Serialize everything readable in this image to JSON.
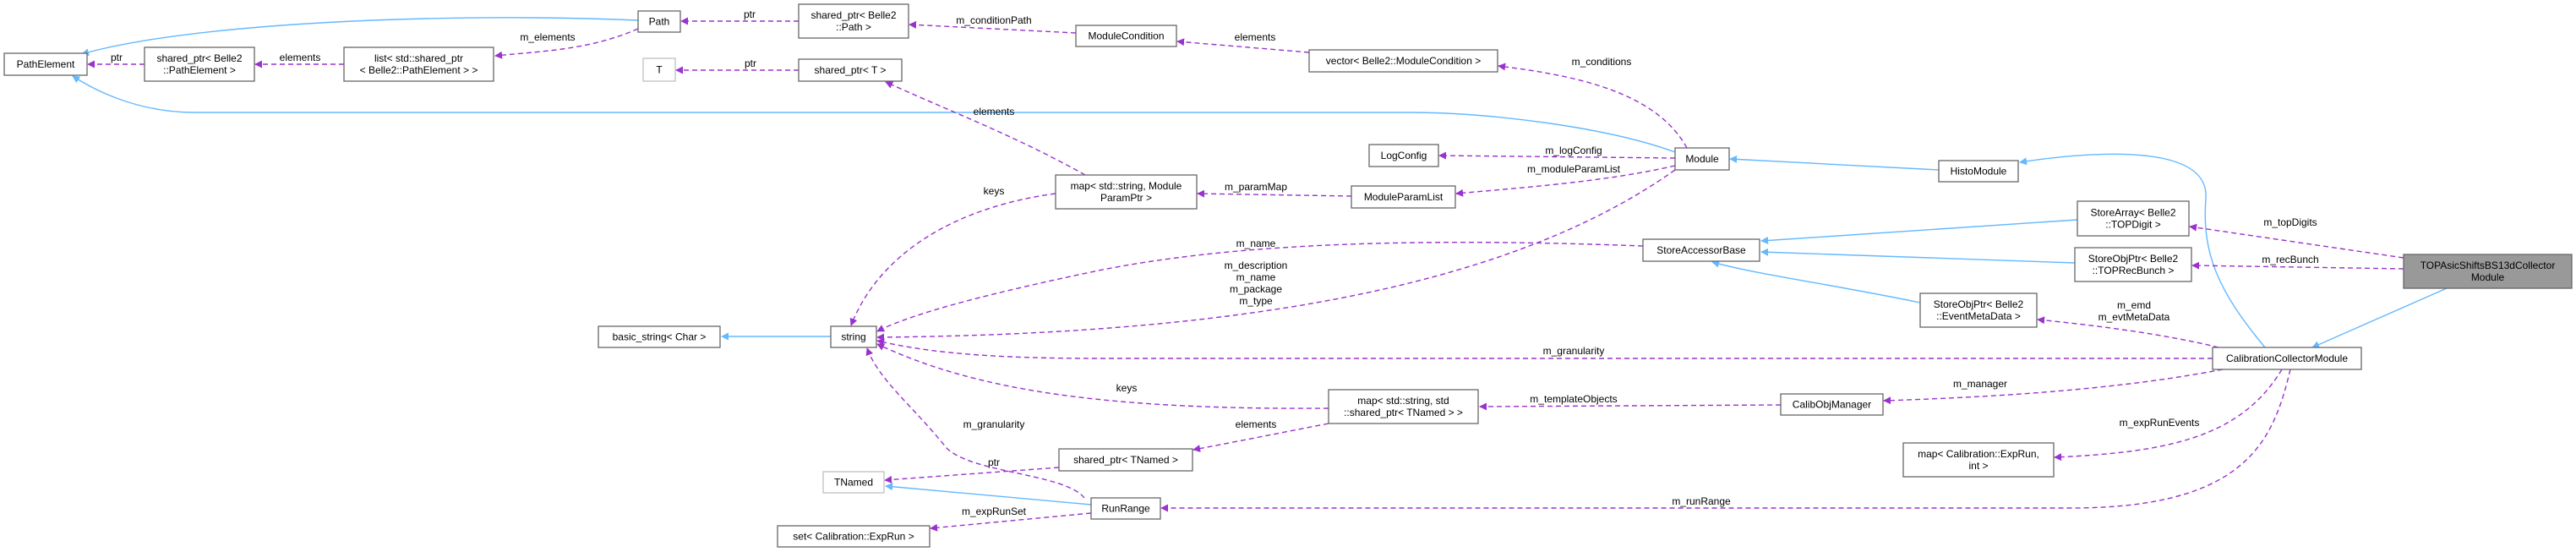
{
  "diagram": {
    "colors": {
      "inheritance": "#63b8ff",
      "usage": "#9a32cd",
      "focus_fill": "#999999"
    },
    "nodes": [
      {
        "id": "PathElement",
        "lines": [
          "PathElement"
        ]
      },
      {
        "id": "SP_PathElement",
        "lines": [
          "shared_ptr< Belle2",
          "::PathElement >"
        ]
      },
      {
        "id": "List_SP_PathElement",
        "lines": [
          "list< std::shared_ptr",
          "< Belle2::PathElement > >"
        ]
      },
      {
        "id": "Path",
        "lines": [
          "Path"
        ]
      },
      {
        "id": "T",
        "lines": [
          "T"
        ],
        "external": true
      },
      {
        "id": "SP_Path",
        "lines": [
          "shared_ptr< Belle2",
          "::Path >"
        ]
      },
      {
        "id": "SP_T",
        "lines": [
          "shared_ptr< T >"
        ]
      },
      {
        "id": "ModuleCondition",
        "lines": [
          "ModuleCondition"
        ]
      },
      {
        "id": "Vector_ModuleCondition",
        "lines": [
          "vector< Belle2::ModuleCondition >"
        ]
      },
      {
        "id": "LogConfig",
        "lines": [
          "LogConfig"
        ]
      },
      {
        "id": "Map_ModuleParamPtr",
        "lines": [
          "map< std::string, Module",
          "ParamPtr >"
        ]
      },
      {
        "id": "ModuleParamList",
        "lines": [
          "ModuleParamList"
        ]
      },
      {
        "id": "Module",
        "lines": [
          "Module"
        ]
      },
      {
        "id": "HistoModule",
        "lines": [
          "HistoModule"
        ]
      },
      {
        "id": "StoreAccessorBase",
        "lines": [
          "StoreAccessorBase"
        ]
      },
      {
        "id": "StoreArray_TOPDigit",
        "lines": [
          "StoreArray< Belle2",
          "::TOPDigit >"
        ]
      },
      {
        "id": "StoreObjPtr_TOPRecBunch",
        "lines": [
          "StoreObjPtr< Belle2",
          "::TOPRecBunch >"
        ]
      },
      {
        "id": "TOPAsic",
        "lines": [
          "TOPAsicShiftsBS13dCollector",
          "Module"
        ],
        "focus": true
      },
      {
        "id": "StoreObjPtr_EventMetaData",
        "lines": [
          "StoreObjPtr< Belle2",
          "::EventMetaData >"
        ]
      },
      {
        "id": "CalibrationCollectorModule",
        "lines": [
          "CalibrationCollectorModule"
        ]
      },
      {
        "id": "BasicString",
        "lines": [
          "basic_string< Char >"
        ]
      },
      {
        "id": "String",
        "lines": [
          "string"
        ]
      },
      {
        "id": "Map_TNamed",
        "lines": [
          "map< std::string, std",
          "::shared_ptr< TNamed > >"
        ]
      },
      {
        "id": "CalibObjManager",
        "lines": [
          "CalibObjManager"
        ]
      },
      {
        "id": "SP_TNamed",
        "lines": [
          "shared_ptr< TNamed >"
        ]
      },
      {
        "id": "TNamed",
        "lines": [
          "TNamed"
        ],
        "external": true
      },
      {
        "id": "RunRange",
        "lines": [
          "RunRange"
        ]
      },
      {
        "id": "Set_ExpRun",
        "lines": [
          "set< Calibration::ExpRun >"
        ]
      },
      {
        "id": "Map_ExpRun_int",
        "lines": [
          "map< Calibration::ExpRun,",
          "int >"
        ]
      }
    ],
    "edges": [
      {
        "from": "Path",
        "to": "PathElement",
        "kind": "inherit",
        "label": []
      },
      {
        "from": "Module",
        "to": "PathElement",
        "kind": "inherit",
        "label": []
      },
      {
        "from": "HistoModule",
        "to": "Module",
        "kind": "inherit",
        "label": []
      },
      {
        "from": "CalibrationCollectorModule",
        "to": "HistoModule",
        "kind": "inherit",
        "label": []
      },
      {
        "from": "TOPAsic",
        "to": "CalibrationCollectorModule",
        "kind": "inherit",
        "label": []
      },
      {
        "from": "StoreArray_TOPDigit",
        "to": "StoreAccessorBase",
        "kind": "inherit",
        "label": []
      },
      {
        "from": "StoreObjPtr_TOPRecBunch",
        "to": "StoreAccessorBase",
        "kind": "inherit",
        "label": []
      },
      {
        "from": "StoreObjPtr_EventMetaData",
        "to": "StoreAccessorBase",
        "kind": "inherit",
        "label": []
      },
      {
        "from": "String",
        "to": "BasicString",
        "kind": "inherit",
        "label": []
      },
      {
        "from": "RunRange",
        "to": "TNamed",
        "kind": "inherit",
        "label": []
      },
      {
        "from": "SP_PathElement",
        "to": "PathElement",
        "kind": "use",
        "label": [
          "ptr"
        ]
      },
      {
        "from": "List_SP_PathElement",
        "to": "SP_PathElement",
        "kind": "use",
        "label": [
          "elements"
        ]
      },
      {
        "from": "Path",
        "to": "List_SP_PathElement",
        "kind": "use",
        "label": [
          "m_elements"
        ]
      },
      {
        "from": "SP_Path",
        "to": "Path",
        "kind": "use",
        "label": [
          "ptr"
        ]
      },
      {
        "from": "ModuleCondition",
        "to": "SP_Path",
        "kind": "use",
        "label": [
          "m_conditionPath"
        ]
      },
      {
        "from": "Vector_ModuleCondition",
        "to": "ModuleCondition",
        "kind": "use",
        "label": [
          "elements"
        ]
      },
      {
        "from": "Module",
        "to": "Vector_ModuleCondition",
        "kind": "use",
        "label": [
          "m_conditions"
        ]
      },
      {
        "from": "SP_T",
        "to": "T",
        "kind": "use",
        "label": [
          "ptr"
        ]
      },
      {
        "from": "Map_ModuleParamPtr",
        "to": "SP_T",
        "kind": "use",
        "label": [
          "elements"
        ]
      },
      {
        "from": "Module",
        "to": "LogConfig",
        "kind": "use",
        "label": [
          "m_logConfig"
        ]
      },
      {
        "from": "Module",
        "to": "ModuleParamList",
        "kind": "use",
        "label": [
          "m_moduleParamList"
        ]
      },
      {
        "from": "ModuleParamList",
        "to": "Map_ModuleParamPtr",
        "kind": "use",
        "label": [
          "m_paramMap"
        ]
      },
      {
        "from": "Map_ModuleParamPtr",
        "to": "String",
        "kind": "use",
        "label": [
          "keys"
        ]
      },
      {
        "from": "StoreAccessorBase",
        "to": "String",
        "kind": "use",
        "label": [
          "m_name"
        ]
      },
      {
        "from": "Module",
        "to": "String",
        "kind": "use",
        "label": [
          "m_description",
          "m_name",
          "m_package",
          "m_type"
        ]
      },
      {
        "from": "CalibrationCollectorModule",
        "to": "String",
        "kind": "use",
        "label": [
          "m_granularity"
        ]
      },
      {
        "from": "Map_TNamed",
        "to": "String",
        "kind": "use",
        "label": [
          "keys"
        ]
      },
      {
        "from": "CalibObjManager",
        "to": "Map_TNamed",
        "kind": "use",
        "label": [
          "m_templateObjects"
        ]
      },
      {
        "from": "CalibrationCollectorModule",
        "to": "CalibObjManager",
        "kind": "use",
        "label": [
          "m_manager"
        ]
      },
      {
        "from": "Map_TNamed",
        "to": "SP_TNamed",
        "kind": "use",
        "label": [
          "elements"
        ]
      },
      {
        "from": "SP_TNamed",
        "to": "TNamed",
        "kind": "use",
        "label": [
          "ptr"
        ]
      },
      {
        "from": "RunRange",
        "to": "String",
        "kind": "use",
        "label": [
          "m_granularity"
        ]
      },
      {
        "from": "RunRange",
        "to": "Set_ExpRun",
        "kind": "use",
        "label": [
          "m_expRunSet"
        ]
      },
      {
        "from": "CalibrationCollectorModule",
        "to": "Map_ExpRun_int",
        "kind": "use",
        "label": [
          "m_expRunEvents"
        ]
      },
      {
        "from": "CalibrationCollectorModule",
        "to": "RunRange",
        "kind": "use",
        "label": [
          "m_runRange"
        ]
      },
      {
        "from": "CalibrationCollectorModule",
        "to": "StoreObjPtr_EventMetaData",
        "kind": "use",
        "label": [
          "m_emd",
          "m_evtMetaData"
        ]
      },
      {
        "from": "TOPAsic",
        "to": "StoreArray_TOPDigit",
        "kind": "use",
        "label": [
          "m_topDigits"
        ]
      },
      {
        "from": "TOPAsic",
        "to": "StoreObjPtr_TOPRecBunch",
        "kind": "use",
        "label": [
          "m_recBunch"
        ]
      }
    ]
  }
}
